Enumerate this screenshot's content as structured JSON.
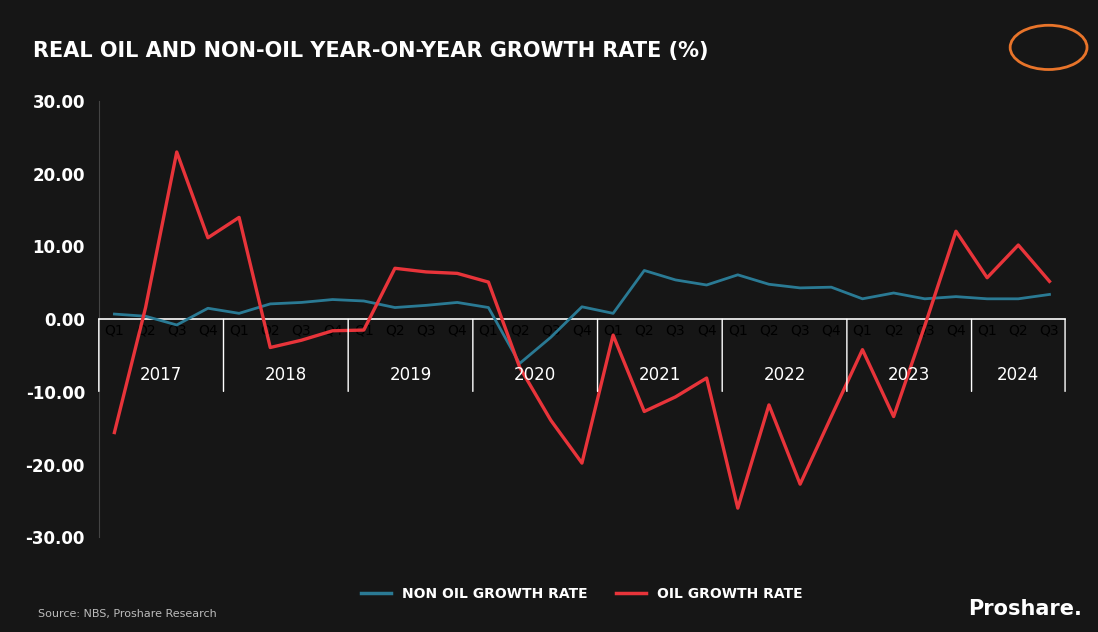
{
  "chart_data": {
    "type": "line",
    "title": "REAL OIL AND NON-OIL YEAR-ON-YEAR GROWTH RATE (%)",
    "source": "Source: NBS, Proshare Research",
    "brand": "Proshare.",
    "categories": [
      "Q1",
      "Q2",
      "Q3",
      "Q4",
      "Q1",
      "Q2",
      "Q3",
      "Q4",
      "Q1",
      "Q2",
      "Q3",
      "Q4",
      "Q1",
      "Q2",
      "Q3",
      "Q4",
      "Q1",
      "Q2",
      "Q3",
      "Q4",
      "Q1",
      "Q2",
      "Q3",
      "Q4",
      "Q1",
      "Q2",
      "Q3",
      "Q4",
      "Q1",
      "Q2",
      "Q3"
    ],
    "groups": [
      {
        "label": "2017",
        "size": 4
      },
      {
        "label": "2018",
        "size": 4
      },
      {
        "label": "2019",
        "size": 4
      },
      {
        "label": "2020",
        "size": 4
      },
      {
        "label": "2021",
        "size": 4
      },
      {
        "label": "2022",
        "size": 4
      },
      {
        "label": "2023",
        "size": 4
      },
      {
        "label": "2024",
        "size": 3
      }
    ],
    "series": [
      {
        "name": "NON OIL GROWTH RATE",
        "color": "#2a7a94",
        "values": [
          0.7,
          0.4,
          -0.8,
          1.5,
          0.8,
          2.1,
          2.3,
          2.7,
          2.5,
          1.6,
          1.9,
          2.3,
          1.6,
          -6.1,
          -2.5,
          1.7,
          0.8,
          6.7,
          5.4,
          4.7,
          6.1,
          4.8,
          4.3,
          4.4,
          2.8,
          3.6,
          2.8,
          3.1,
          2.8,
          2.8,
          3.4
        ]
      },
      {
        "name": "OIL GROWTH RATE",
        "color": "#e8343a",
        "values": [
          -15.6,
          1.6,
          23.0,
          11.2,
          14.0,
          -3.9,
          -2.9,
          -1.6,
          -1.5,
          7.0,
          6.5,
          6.3,
          5.1,
          -6.6,
          -13.9,
          -19.8,
          -2.2,
          -12.7,
          -10.7,
          -8.1,
          -26.0,
          -11.8,
          -22.7,
          -13.4,
          -4.2,
          -13.4,
          -0.9,
          12.1,
          5.7,
          10.2,
          5.2
        ]
      }
    ],
    "ylim": [
      -30,
      30
    ],
    "yticks": [
      {
        "value": -30,
        "label": "-30.00"
      },
      {
        "value": -20,
        "label": "-20.00"
      },
      {
        "value": -10,
        "label": "-10.00"
      },
      {
        "value": 0,
        "label": "0.00"
      },
      {
        "value": 10,
        "label": "10.00"
      },
      {
        "value": 20,
        "label": "20.00"
      },
      {
        "value": 30,
        "label": "30.00"
      }
    ],
    "grid": false
  }
}
